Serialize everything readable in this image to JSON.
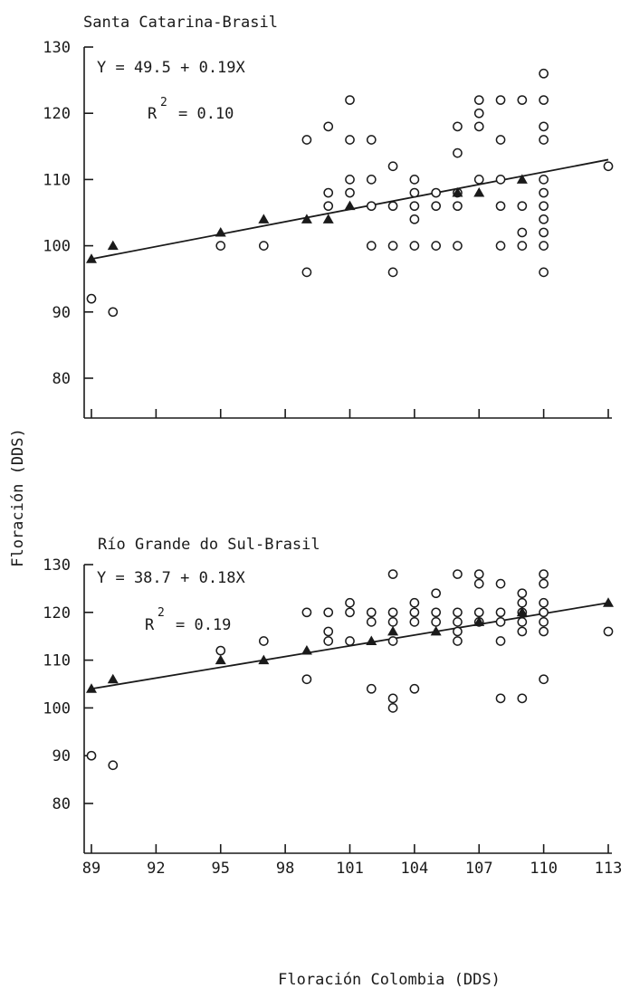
{
  "chart_data": [
    {
      "type": "scatter",
      "title": "Santa Catarina-Brasil",
      "equation": "Y = 49.5 + 0.19X",
      "r2_label": "R",
      "r2_sup": "2",
      "r2_value": "= 0.10",
      "ylabel": "Floración (DDS)",
      "xlabel": "",
      "ylim": [
        75,
        130
      ],
      "yticks": [
        "80",
        "90",
        "100",
        "110",
        "120",
        "130"
      ],
      "ytick_values": [
        80,
        90,
        100,
        110,
        120,
        130
      ],
      "xtick_labels": [],
      "regression": {
        "intercept": 49.5,
        "slope": 0.19,
        "x_range": [
          89,
          113
        ]
      },
      "series": [
        {
          "name": "",
          "marker": "circle",
          "points": [
            [
              89,
              92
            ],
            [
              90,
              90
            ],
            [
              95,
              100
            ],
            [
              97,
              100
            ],
            [
              99,
              116
            ],
            [
              99,
              96
            ],
            [
              100,
              118
            ],
            [
              100,
              108
            ],
            [
              100,
              106
            ],
            [
              101,
              122
            ],
            [
              101,
              116
            ],
            [
              101,
              110
            ],
            [
              101,
              108
            ],
            [
              102,
              116
            ],
            [
              102,
              110
            ],
            [
              102,
              106
            ],
            [
              102,
              100
            ],
            [
              103,
              112
            ],
            [
              103,
              106
            ],
            [
              103,
              100
            ],
            [
              103,
              96
            ],
            [
              104,
              110
            ],
            [
              104,
              108
            ],
            [
              104,
              106
            ],
            [
              104,
              104
            ],
            [
              104,
              100
            ],
            [
              105,
              108
            ],
            [
              105,
              106
            ],
            [
              105,
              100
            ],
            [
              106,
              118
            ],
            [
              106,
              114
            ],
            [
              106,
              108
            ],
            [
              106,
              106
            ],
            [
              106,
              100
            ],
            [
              107,
              122
            ],
            [
              107,
              120
            ],
            [
              107,
              118
            ],
            [
              107,
              110
            ],
            [
              108,
              122
            ],
            [
              108,
              116
            ],
            [
              108,
              110
            ],
            [
              108,
              106
            ],
            [
              108,
              100
            ],
            [
              109,
              122
            ],
            [
              109,
              106
            ],
            [
              109,
              102
            ],
            [
              109,
              100
            ],
            [
              110,
              126
            ],
            [
              110,
              122
            ],
            [
              110,
              118
            ],
            [
              110,
              116
            ],
            [
              110,
              110
            ],
            [
              110,
              108
            ],
            [
              110,
              106
            ],
            [
              110,
              104
            ],
            [
              110,
              102
            ],
            [
              110,
              100
            ],
            [
              110,
              96
            ],
            [
              113,
              112
            ]
          ]
        },
        {
          "name": "",
          "marker": "triangle",
          "points": [
            [
              89,
              98
            ],
            [
              90,
              100
            ],
            [
              95,
              102
            ],
            [
              97,
              104
            ],
            [
              99,
              104
            ],
            [
              100,
              104
            ],
            [
              101,
              106
            ],
            [
              106,
              108
            ],
            [
              107,
              108
            ],
            [
              109,
              110
            ]
          ]
        }
      ]
    },
    {
      "type": "scatter",
      "title": "Río Grande do Sul-Brasil",
      "equation": "Y = 38.7 + 0.18X",
      "r2_label": "R",
      "r2_sup": "2",
      "r2_value": "= 0.19",
      "ylabel": "",
      "xlabel": "Floración Colombia (DDS)",
      "ylim": [
        75,
        130
      ],
      "yticks": [
        "80",
        "90",
        "100",
        "110",
        "120",
        "130"
      ],
      "ytick_values": [
        80,
        90,
        100,
        110,
        120,
        130
      ],
      "xtick_labels": [
        "89",
        "92",
        "95",
        "98",
        "101",
        "104",
        "107",
        "110",
        "113"
      ],
      "regression": {
        "intercept": 38.7,
        "slope": 0.18,
        "x_range": [
          89,
          113
        ]
      },
      "series": [
        {
          "name": "",
          "marker": "circle",
          "points": [
            [
              89,
              90
            ],
            [
              90,
              88
            ],
            [
              95,
              112
            ],
            [
              97,
              114
            ],
            [
              99,
              120
            ],
            [
              99,
              106
            ],
            [
              100,
              120
            ],
            [
              100,
              116
            ],
            [
              100,
              114
            ],
            [
              101,
              122
            ],
            [
              101,
              120
            ],
            [
              101,
              114
            ],
            [
              102,
              120
            ],
            [
              102,
              118
            ],
            [
              102,
              104
            ],
            [
              103,
              128
            ],
            [
              103,
              120
            ],
            [
              103,
              118
            ],
            [
              103,
              114
            ],
            [
              103,
              102
            ],
            [
              103,
              100
            ],
            [
              104,
              122
            ],
            [
              104,
              120
            ],
            [
              104,
              118
            ],
            [
              104,
              104
            ],
            [
              105,
              124
            ],
            [
              105,
              120
            ],
            [
              105,
              118
            ],
            [
              106,
              128
            ],
            [
              106,
              120
            ],
            [
              106,
              118
            ],
            [
              106,
              116
            ],
            [
              106,
              114
            ],
            [
              107,
              128
            ],
            [
              107,
              126
            ],
            [
              107,
              120
            ],
            [
              107,
              118
            ],
            [
              108,
              126
            ],
            [
              108,
              120
            ],
            [
              108,
              118
            ],
            [
              108,
              114
            ],
            [
              108,
              102
            ],
            [
              109,
              124
            ],
            [
              109,
              122
            ],
            [
              109,
              120
            ],
            [
              109,
              118
            ],
            [
              109,
              116
            ],
            [
              109,
              102
            ],
            [
              110,
              128
            ],
            [
              110,
              126
            ],
            [
              110,
              122
            ],
            [
              110,
              120
            ],
            [
              110,
              118
            ],
            [
              110,
              116
            ],
            [
              110,
              106
            ],
            [
              113,
              116
            ]
          ]
        },
        {
          "name": "",
          "marker": "triangle",
          "points": [
            [
              89,
              104
            ],
            [
              90,
              106
            ],
            [
              95,
              110
            ],
            [
              97,
              110
            ],
            [
              99,
              112
            ],
            [
              102,
              114
            ],
            [
              103,
              116
            ],
            [
              105,
              116
            ],
            [
              107,
              118
            ],
            [
              109,
              120
            ],
            [
              113,
              122
            ]
          ]
        }
      ]
    }
  ]
}
